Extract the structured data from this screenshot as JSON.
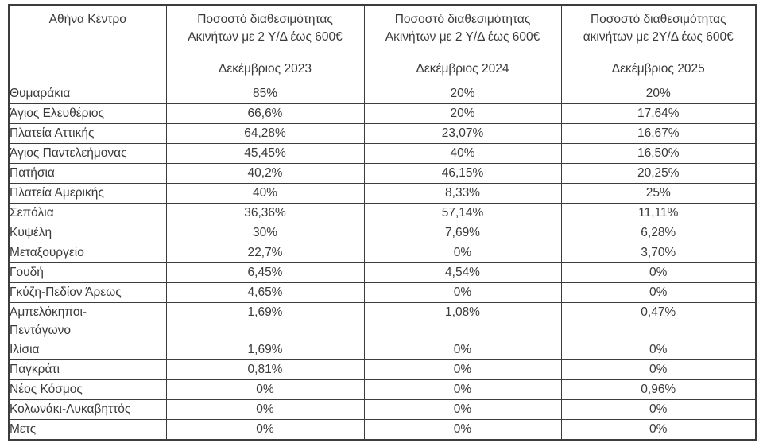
{
  "table": {
    "area_header": "Αθήνα Κέντρο",
    "columns": [
      {
        "title_line1": "Ποσοστό διαθεσιμότητας",
        "title_line2": "Ακινήτων με 2 Υ/Δ έως 600€",
        "period": "Δεκέμβριος 2023"
      },
      {
        "title_line1": "Ποσοστό διαθεσιμότητας",
        "title_line2": "Ακινήτων με 2 Υ/Δ έως 600€",
        "period": "Δεκέμβριος 2024"
      },
      {
        "title_line1": "Ποσοστό διαθεσιμότητας",
        "title_line2": "ακινήτων με 2Υ/Δ έως 600€",
        "period": "Δεκέμβριος 2025"
      }
    ],
    "rows": [
      {
        "name": "Θυμαράκια",
        "values": [
          "85%",
          "20%",
          "20%"
        ]
      },
      {
        "name": "Άγιος Ελευθέριος",
        "values": [
          "66,6%",
          "20%",
          "17,64%"
        ]
      },
      {
        "name": "Πλατεία Αττικής",
        "values": [
          "64,28%",
          "23,07%",
          "16,67%"
        ]
      },
      {
        "name": "Άγιος Παντελεήμονας",
        "values": [
          "45,45%",
          "40%",
          "16,50%"
        ]
      },
      {
        "name": "Πατήσια",
        "values": [
          "40,2%",
          "46,15%",
          "20,25%"
        ]
      },
      {
        "name": "Πλατεία Αμερικής",
        "values": [
          "40%",
          "8,33%",
          "25%"
        ]
      },
      {
        "name": "Σεπόλια",
        "values": [
          "36,36%",
          "57,14%",
          "11,11%"
        ]
      },
      {
        "name": "Κυψέλη",
        "values": [
          "30%",
          "7,69%",
          "6,28%"
        ]
      },
      {
        "name": "Μεταξουργείο",
        "values": [
          "22,7%",
          "0%",
          "3,70%"
        ]
      },
      {
        "name": "Γουδή",
        "values": [
          "6,45%",
          "4,54%",
          "0%"
        ]
      },
      {
        "name": "Γκύζη-Πεδίον Άρεως",
        "values": [
          "4,65%",
          "0%",
          "0%"
        ]
      },
      {
        "name": "Αμπελόκηποι-\nΠεντάγωνο",
        "values": [
          "1,69%",
          "1,08%",
          "0,47%"
        ]
      },
      {
        "name": "Ιλίσια",
        "values": [
          "1,69%",
          "0%",
          "0%"
        ]
      },
      {
        "name": "Παγκράτι",
        "values": [
          "0,81%",
          "0%",
          "0%"
        ]
      },
      {
        "name": "Νέος Κόσμος",
        "values": [
          "0%",
          "0%",
          "0,96%"
        ]
      },
      {
        "name": "Κολωνάκι-Λυκαβηττός",
        "values": [
          "0%",
          "0%",
          "0%"
        ]
      },
      {
        "name": "Μετς",
        "values": [
          "0%",
          "0%",
          "0%"
        ]
      }
    ]
  }
}
